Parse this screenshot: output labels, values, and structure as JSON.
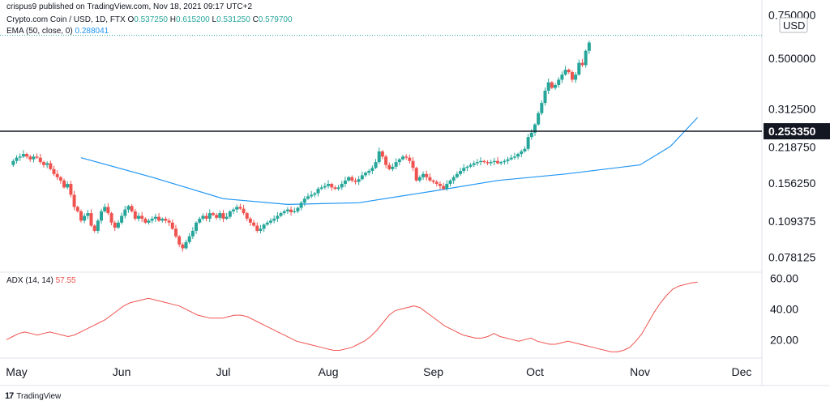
{
  "header": {
    "published": "crispus9 published on TradingView.com, Nov 18, 2021 09:17 UTC+2",
    "symbol": "Crypto.com Coin / USD, 1D, FTX",
    "o_label": "O",
    "o_value": "0.537250",
    "h_label": "H",
    "h_value": "0.615200",
    "l_label": "L",
    "l_value": "0.531250",
    "c_label": "C",
    "c_value": "0.579700",
    "ema_label": "EMA (50, close, 0)",
    "ema_value": "0.288041",
    "adx_label": "ADX (14, 14)",
    "adx_value": "57.55"
  },
  "footer": {
    "brand": "TradingView",
    "logo": "17"
  },
  "colors": {
    "up": "#26a69a",
    "down": "#ef5350",
    "ema": "#2196f3",
    "adx": "#ef5350",
    "hline": "#131722",
    "axis_text": "#131722",
    "border": "#e0e3eb",
    "dotted": "#26a69a"
  },
  "chart_data": {
    "type": "candlestick",
    "currency": "USD",
    "price_axis": {
      "scale": "log",
      "ticks": [
        0.75,
        0.5,
        0.3125,
        0.21875,
        0.15625,
        0.109375,
        0.078125
      ],
      "tick_labels": [
        "0.750000",
        "0.500000",
        "0.312500",
        "0.218750",
        "0.156250",
        "0.109375",
        "0.078125"
      ],
      "range": [
        0.068,
        0.8
      ]
    },
    "horizontal_line": {
      "value": 0.25335,
      "label": "0.253350"
    },
    "time_axis": {
      "labels": [
        "May",
        "Jun",
        "Jul",
        "Aug",
        "Sep",
        "Oct",
        "Nov",
        "Dec"
      ],
      "dates": [
        "2021-05-01",
        "2021-06-01",
        "2021-07-01",
        "2021-08-01",
        "2021-09-01",
        "2021-10-01",
        "2021-11-01",
        "2021-12-01"
      ],
      "range": [
        "2021-04-28",
        "2021-12-07"
      ]
    },
    "candles_start": "2021-04-29",
    "closes": [
      0.185,
      0.192,
      0.198,
      0.2,
      0.205,
      0.2,
      0.195,
      0.2,
      0.198,
      0.19,
      0.185,
      0.188,
      0.178,
      0.17,
      0.165,
      0.16,
      0.15,
      0.155,
      0.14,
      0.125,
      0.12,
      0.11,
      0.115,
      0.118,
      0.105,
      0.1,
      0.11,
      0.12,
      0.125,
      0.118,
      0.108,
      0.103,
      0.108,
      0.115,
      0.122,
      0.126,
      0.12,
      0.112,
      0.115,
      0.112,
      0.108,
      0.11,
      0.112,
      0.114,
      0.11,
      0.112,
      0.11,
      0.108,
      0.102,
      0.095,
      0.088,
      0.085,
      0.09,
      0.095,
      0.1,
      0.108,
      0.112,
      0.115,
      0.112,
      0.118,
      0.116,
      0.113,
      0.118,
      0.112,
      0.114,
      0.12,
      0.122,
      0.125,
      0.123,
      0.118,
      0.112,
      0.108,
      0.105,
      0.1,
      0.102,
      0.106,
      0.108,
      0.11,
      0.112,
      0.115,
      0.118,
      0.12,
      0.122,
      0.119,
      0.12,
      0.124,
      0.13,
      0.135,
      0.138,
      0.14,
      0.142,
      0.148,
      0.15,
      0.152,
      0.155,
      0.15,
      0.148,
      0.15,
      0.155,
      0.16,
      0.165,
      0.16,
      0.158,
      0.162,
      0.168,
      0.172,
      0.175,
      0.18,
      0.19,
      0.21,
      0.2,
      0.185,
      0.178,
      0.182,
      0.19,
      0.195,
      0.2,
      0.198,
      0.192,
      0.18,
      0.16,
      0.165,
      0.17,
      0.165,
      0.16,
      0.158,
      0.155,
      0.152,
      0.148,
      0.155,
      0.16,
      0.165,
      0.17,
      0.175,
      0.18,
      0.182,
      0.185,
      0.188,
      0.19,
      0.192,
      0.19,
      0.188,
      0.19,
      0.192,
      0.188,
      0.19,
      0.192,
      0.195,
      0.198,
      0.2,
      0.205,
      0.21,
      0.215,
      0.24,
      0.25,
      0.27,
      0.3,
      0.33,
      0.37,
      0.4,
      0.38,
      0.39,
      0.41,
      0.43,
      0.45,
      0.44,
      0.41,
      0.43,
      0.48,
      0.47,
      0.537,
      0.5797
    ],
    "ema": [
      {
        "date": "2021-05-20",
        "value": 0.198
      },
      {
        "date": "2021-06-10",
        "value": 0.165
      },
      {
        "date": "2021-07-01",
        "value": 0.135
      },
      {
        "date": "2021-07-20",
        "value": 0.128
      },
      {
        "date": "2021-08-10",
        "value": 0.13
      },
      {
        "date": "2021-09-01",
        "value": 0.145
      },
      {
        "date": "2021-09-20",
        "value": 0.16
      },
      {
        "date": "2021-10-10",
        "value": 0.17
      },
      {
        "date": "2021-11-01",
        "value": 0.185
      },
      {
        "date": "2021-11-10",
        "value": 0.22
      },
      {
        "date": "2021-11-18",
        "value": 0.288041
      }
    ],
    "adx": {
      "ticks": [
        60,
        40,
        20
      ],
      "tick_labels": [
        "60.00",
        "40.00",
        "20.00"
      ],
      "range": [
        8,
        63
      ],
      "values": [
        20,
        22,
        24,
        25,
        24,
        23,
        24,
        25,
        24,
        23,
        22,
        23,
        25,
        27,
        29,
        31,
        33,
        36,
        39,
        42,
        44,
        45,
        46,
        47,
        46,
        45,
        44,
        43,
        42,
        40,
        38,
        36,
        35,
        34,
        34,
        34,
        35,
        36,
        36,
        35,
        33,
        31,
        29,
        27,
        25,
        23,
        21,
        19,
        18,
        17,
        16,
        15,
        14,
        13,
        13,
        14,
        15,
        17,
        19,
        22,
        26,
        31,
        36,
        39,
        40,
        41,
        42,
        41,
        38,
        35,
        32,
        29,
        27,
        25,
        23,
        22,
        21,
        21,
        22,
        24,
        22,
        21,
        20,
        19,
        20,
        21,
        19,
        18,
        17,
        17,
        18,
        19,
        18,
        17,
        16,
        15,
        14,
        13,
        12,
        12,
        13,
        15,
        19,
        24,
        31,
        38,
        44,
        49,
        53,
        55,
        56,
        57,
        57.55
      ]
    }
  }
}
